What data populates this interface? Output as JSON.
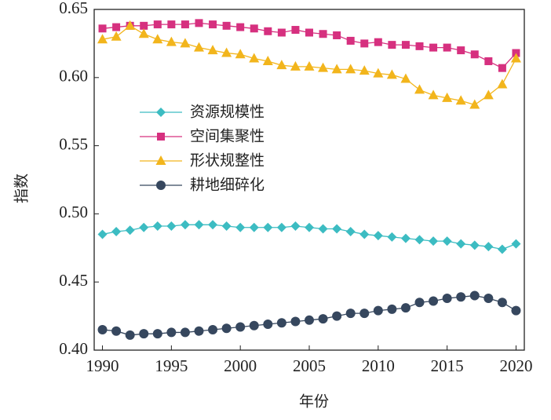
{
  "chart_data": {
    "type": "line",
    "x_label": "年份",
    "y_label": "指数",
    "x": [
      1990,
      1991,
      1992,
      1993,
      1994,
      1995,
      1996,
      1997,
      1998,
      1999,
      2000,
      2001,
      2002,
      2003,
      2004,
      2005,
      2006,
      2007,
      2008,
      2009,
      2010,
      2011,
      2012,
      2013,
      2014,
      2015,
      2016,
      2017,
      2018,
      2019,
      2020
    ],
    "xlim": [
      1989.4,
      2020.6
    ],
    "xticks": [
      1990,
      1995,
      2000,
      2005,
      2010,
      2015,
      2020
    ],
    "ylim": [
      0.4,
      0.65
    ],
    "yticks": [
      {
        "value": 0.4,
        "label": "0.40"
      },
      {
        "value": 0.45,
        "label": "0.45"
      },
      {
        "value": 0.5,
        "label": "0.50"
      },
      {
        "value": 0.55,
        "label": "0.55"
      },
      {
        "value": 0.6,
        "label": "0.60"
      },
      {
        "value": 0.65,
        "label": "0.65"
      }
    ],
    "legend": "center-left",
    "series": [
      {
        "name": "资源规模性",
        "color": "#3cbcc2",
        "marker": "diamond",
        "values": [
          0.485,
          0.487,
          0.488,
          0.49,
          0.491,
          0.491,
          0.492,
          0.492,
          0.492,
          0.491,
          0.49,
          0.49,
          0.49,
          0.49,
          0.491,
          0.49,
          0.489,
          0.489,
          0.487,
          0.485,
          0.484,
          0.483,
          0.482,
          0.481,
          0.48,
          0.48,
          0.478,
          0.477,
          0.476,
          0.474,
          0.478
        ]
      },
      {
        "name": "空间集聚性",
        "color": "#d6307f",
        "marker": "square",
        "values": [
          0.636,
          0.637,
          0.638,
          0.638,
          0.639,
          0.639,
          0.639,
          0.64,
          0.639,
          0.638,
          0.637,
          0.636,
          0.634,
          0.633,
          0.635,
          0.633,
          0.632,
          0.631,
          0.627,
          0.625,
          0.626,
          0.624,
          0.624,
          0.623,
          0.622,
          0.622,
          0.62,
          0.617,
          0.612,
          0.607,
          0.618
        ]
      },
      {
        "name": "形状规整性",
        "color": "#f2b51c",
        "marker": "triangle",
        "values": [
          0.628,
          0.63,
          0.638,
          0.632,
          0.628,
          0.626,
          0.625,
          0.622,
          0.62,
          0.618,
          0.617,
          0.614,
          0.612,
          0.609,
          0.608,
          0.608,
          0.607,
          0.606,
          0.606,
          0.605,
          0.603,
          0.602,
          0.599,
          0.591,
          0.587,
          0.585,
          0.583,
          0.58,
          0.587,
          0.595,
          0.614
        ]
      },
      {
        "name": "耕地细碎化",
        "color": "#36475e",
        "marker": "circle",
        "values": [
          0.415,
          0.414,
          0.411,
          0.412,
          0.412,
          0.413,
          0.413,
          0.414,
          0.415,
          0.416,
          0.417,
          0.418,
          0.419,
          0.42,
          0.421,
          0.422,
          0.423,
          0.425,
          0.427,
          0.427,
          0.429,
          0.43,
          0.431,
          0.435,
          0.436,
          0.438,
          0.439,
          0.44,
          0.438,
          0.435,
          0.429
        ]
      }
    ]
  }
}
